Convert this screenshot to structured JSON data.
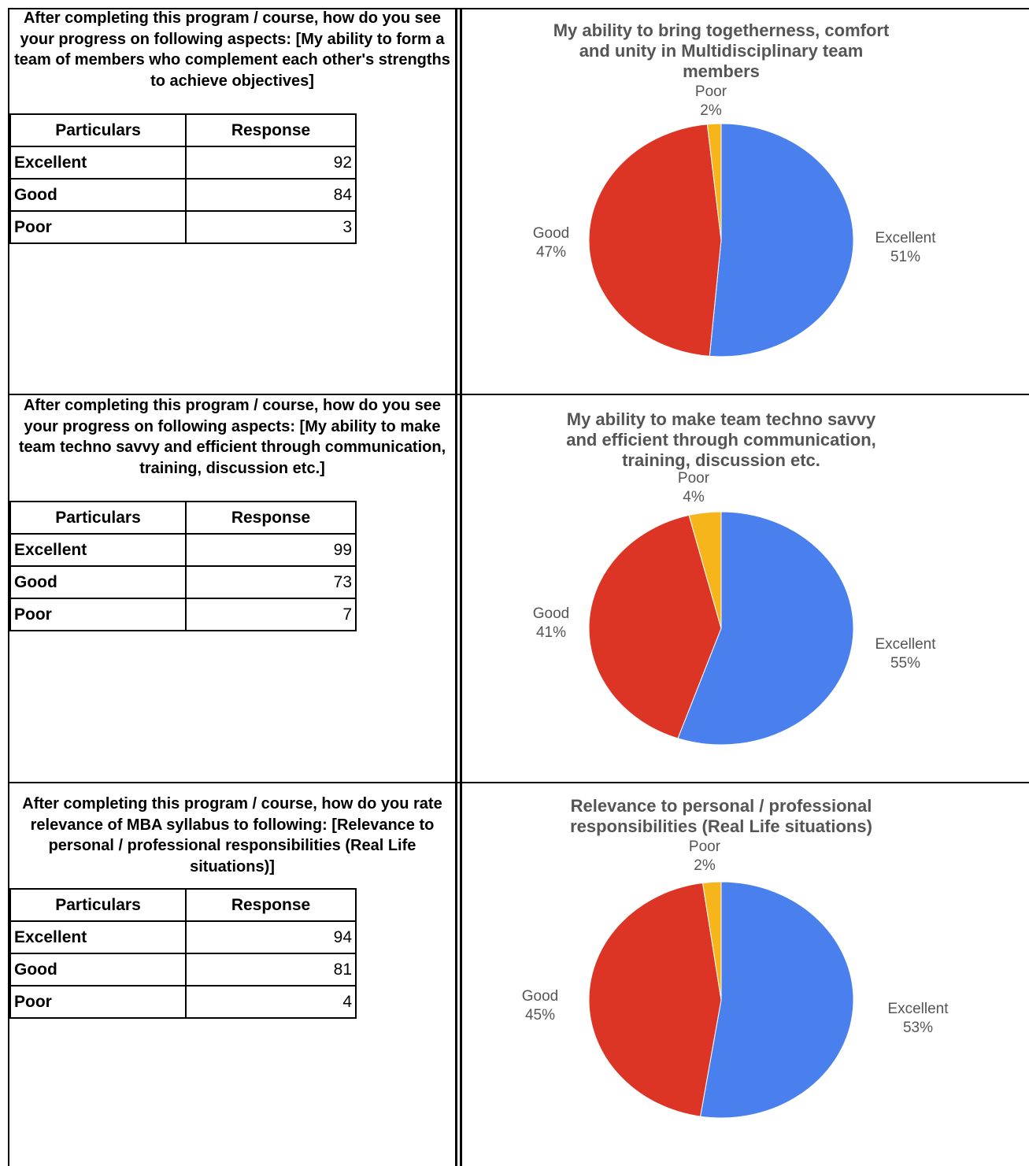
{
  "colors": {
    "excellent": "#4a80ee",
    "good": "#dc3525",
    "poor": "#f5b51b",
    "text": "#555555"
  },
  "table_headers": {
    "particulars": "Particulars",
    "response": "Response"
  },
  "sections": [
    {
      "question": "After completing this program / course, how do you see your progress on following aspects: [My ability to form a team of members who complement each other's strengths to achieve objectives]",
      "rows": [
        {
          "label": "Excellent",
          "value": "92"
        },
        {
          "label": "Good",
          "value": "84"
        },
        {
          "label": "Poor",
          "value": "3"
        }
      ]
    },
    {
      "question": "After completing this program / course, how do you see your progress on following aspects: [My ability to make team techno savvy and efficient through communication, training, discussion etc.]",
      "rows": [
        {
          "label": "Excellent",
          "value": "99"
        },
        {
          "label": "Good",
          "value": "73"
        },
        {
          "label": "Poor",
          "value": "7"
        }
      ]
    },
    {
      "question": "After completing this program / course, how do you rate relevance of MBA syllabus to following: [Relevance to personal / professional responsibilities (Real Life situations)]",
      "rows": [
        {
          "label": "Excellent",
          "value": "94"
        },
        {
          "label": "Good",
          "value": "81"
        },
        {
          "label": "Poor",
          "value": "4"
        }
      ]
    }
  ],
  "chart_data": [
    {
      "type": "pie",
      "title": [
        "My ability to bring togetherness, comfort",
        "and unity in Multidisciplinary team",
        "members"
      ],
      "slices": [
        {
          "name": "Excellent",
          "value": 92,
          "percent_label": "51%"
        },
        {
          "name": "Good",
          "value": 84,
          "percent_label": "47%"
        },
        {
          "name": "Poor",
          "value": 3,
          "percent_label": "2%"
        }
      ]
    },
    {
      "type": "pie",
      "title": [
        "My ability to make team techno savvy",
        "and efficient through communication,",
        "training, discussion etc."
      ],
      "slices": [
        {
          "name": "Excellent",
          "value": 99,
          "percent_label": "55%"
        },
        {
          "name": "Good",
          "value": 73,
          "percent_label": "41%"
        },
        {
          "name": "Poor",
          "value": 7,
          "percent_label": "4%"
        }
      ]
    },
    {
      "type": "pie",
      "title": [
        "Relevance to personal / professional",
        "responsibilities (Real Life situations)"
      ],
      "slices": [
        {
          "name": "Excellent",
          "value": 94,
          "percent_label": "53%"
        },
        {
          "name": "Good",
          "value": 81,
          "percent_label": "45%"
        },
        {
          "name": "Poor",
          "value": 4,
          "percent_label": "2%"
        }
      ]
    }
  ]
}
